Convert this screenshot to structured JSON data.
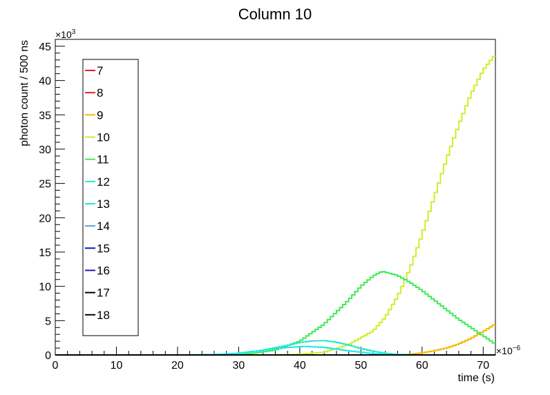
{
  "chart_data": {
    "type": "line",
    "title": "Column 10",
    "xlabel": "time (s)",
    "ylabel": "photon count / 500 ns",
    "x_multiplier": "×10",
    "x_multiplier_exp": "−6",
    "y_multiplier": "×10",
    "y_multiplier_exp": "3",
    "xlim": [
      0,
      72
    ],
    "ylim": [
      0,
      46
    ],
    "x_ticks": [
      0,
      10,
      20,
      30,
      40,
      50,
      60,
      70
    ],
    "y_ticks": [
      0,
      5,
      10,
      15,
      20,
      25,
      30,
      35,
      40,
      45
    ],
    "grid": false,
    "legend_position": "top-left",
    "legend": [
      {
        "label": "7",
        "color": "#e8173a"
      },
      {
        "label": "8",
        "color": "#e0201c"
      },
      {
        "label": "9",
        "color": "#f5b800"
      },
      {
        "label": "10",
        "color": "#d2ec2b"
      },
      {
        "label": "11",
        "color": "#3fea56"
      },
      {
        "label": "12",
        "color": "#29e8c8"
      },
      {
        "label": "13",
        "color": "#1ee6e6"
      },
      {
        "label": "14",
        "color": "#5e9ed6"
      },
      {
        "label": "15",
        "color": "#0016c8"
      },
      {
        "label": "16",
        "color": "#2a14a8"
      },
      {
        "label": "17",
        "color": "#000000"
      },
      {
        "label": "18",
        "color": "#000000"
      }
    ],
    "series": [
      {
        "name": "9",
        "color": "#f5b800",
        "x": [
          0,
          56,
          58,
          60,
          62,
          64,
          66,
          68,
          70,
          72
        ],
        "y": [
          0,
          0,
          0.1,
          0.3,
          0.6,
          1.0,
          1.6,
          2.4,
          3.4,
          4.5
        ]
      },
      {
        "name": "10",
        "color": "#d2ec2b",
        "x": [
          0,
          36,
          40,
          44,
          48,
          52,
          54,
          56,
          58,
          60,
          62,
          64,
          66,
          68,
          70,
          72
        ],
        "y": [
          0,
          0,
          0.1,
          0.4,
          1.5,
          3.5,
          5.5,
          8.5,
          12.5,
          17.5,
          23,
          28.5,
          33.5,
          38,
          41.5,
          43.8
        ]
      },
      {
        "name": "11",
        "color": "#3fea56",
        "x": [
          0,
          28,
          32,
          36,
          40,
          44,
          48,
          50,
          52,
          53.5,
          56,
          58,
          60,
          62,
          64,
          66,
          68,
          70,
          72
        ],
        "y": [
          0,
          0,
          0.2,
          0.7,
          2.0,
          4.5,
          8.0,
          10.0,
          11.5,
          12.2,
          11.6,
          10.6,
          9.4,
          8.0,
          6.6,
          5.2,
          4.0,
          2.8,
          1.6
        ]
      },
      {
        "name": "12",
        "color": "#29e8c8",
        "x": [
          0,
          22,
          26,
          30,
          34,
          38,
          40,
          42,
          44,
          46,
          48,
          50,
          52,
          54,
          56,
          60,
          72
        ],
        "y": [
          0,
          0,
          0.05,
          0.2,
          0.7,
          1.4,
          1.8,
          2.05,
          2.1,
          1.85,
          1.45,
          0.95,
          0.55,
          0.25,
          0.08,
          0,
          0
        ]
      },
      {
        "name": "13",
        "color": "#1ee6e6",
        "x": [
          0,
          22,
          26,
          30,
          34,
          38,
          41,
          44,
          48,
          52,
          56,
          60,
          72
        ],
        "y": [
          0,
          0,
          0.05,
          0.25,
          0.7,
          1.1,
          1.25,
          1.1,
          0.6,
          0.2,
          0.04,
          0,
          0
        ]
      },
      {
        "name": "7",
        "color": "#e8173a",
        "x": [
          0,
          72
        ],
        "y": [
          0,
          0
        ]
      },
      {
        "name": "8",
        "color": "#e0201c",
        "x": [
          0,
          72
        ],
        "y": [
          0,
          0
        ]
      },
      {
        "name": "14",
        "color": "#5e9ed6",
        "x": [
          0,
          72
        ],
        "y": [
          0,
          0
        ]
      },
      {
        "name": "15",
        "color": "#0016c8",
        "x": [
          0,
          72
        ],
        "y": [
          0,
          0
        ]
      },
      {
        "name": "16",
        "color": "#2a14a8",
        "x": [
          0,
          72
        ],
        "y": [
          0,
          0
        ]
      },
      {
        "name": "17",
        "color": "#000000",
        "x": [
          0,
          72
        ],
        "y": [
          0,
          0
        ]
      },
      {
        "name": "18",
        "color": "#000000",
        "x": [
          0,
          72
        ],
        "y": [
          0,
          0
        ]
      }
    ]
  }
}
